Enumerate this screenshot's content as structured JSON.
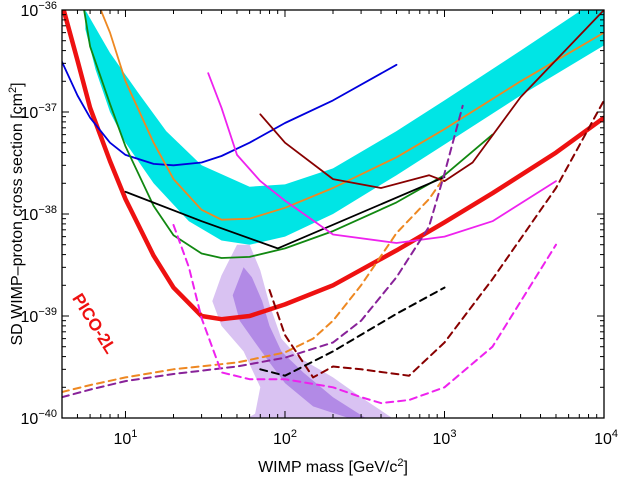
{
  "chart_data": {
    "type": "line",
    "title": "",
    "xlabel_main": "WIMP mass [GeV/c",
    "xlabel_sup": "2",
    "xlabel_end": "]",
    "ylabel_main": "SD WIMP–proton cross section [cm",
    "ylabel_sup": "2",
    "ylabel_end": "]",
    "x_scale": "log",
    "y_scale": "log",
    "xlim": [
      4,
      10000
    ],
    "ylim": [
      1e-40,
      1e-36
    ],
    "x_ticks": [
      {
        "value": 10,
        "base": "10",
        "exp": "1"
      },
      {
        "value": 100,
        "base": "10",
        "exp": "2"
      },
      {
        "value": 1000,
        "base": "10",
        "exp": "3"
      },
      {
        "value": 10000,
        "base": "10",
        "exp": "4"
      }
    ],
    "y_ticks": [
      {
        "value": 1e-40,
        "base": "10",
        "exp": "−40"
      },
      {
        "value": 1e-39,
        "base": "10",
        "exp": "−39"
      },
      {
        "value": 1e-38,
        "base": "10",
        "exp": "−38"
      },
      {
        "value": 1e-37,
        "base": "10",
        "exp": "−37"
      },
      {
        "value": 1e-36,
        "base": "10",
        "exp": "−36"
      }
    ],
    "grid": false,
    "annotations": [
      {
        "text": "PICO-2L",
        "color": "#ee1111",
        "anchor_x": 4.6,
        "anchor_y": 1.5e-39
      }
    ],
    "bands": [
      {
        "id": "cyan-band",
        "color": "#00e5e5",
        "upper": [
          [
            5.6,
            1e-36
          ],
          [
            8,
            3.8e-37
          ],
          [
            12,
            1.55e-37
          ],
          [
            18,
            6.5e-38
          ],
          [
            30,
            3e-38
          ],
          [
            60,
            1.85e-38
          ],
          [
            100,
            1.95e-38
          ],
          [
            200,
            2.8e-38
          ],
          [
            500,
            6.5e-38
          ],
          [
            1000,
            1.3e-37
          ],
          [
            3000,
            4e-37
          ],
          [
            10000,
            1.4e-36
          ]
        ],
        "lower": [
          [
            10000,
            4.5e-37
          ],
          [
            3000,
            1.45e-37
          ],
          [
            1000,
            4.8e-38
          ],
          [
            500,
            2.4e-38
          ],
          [
            200,
            1e-38
          ],
          [
            100,
            6e-39
          ],
          [
            60,
            5e-39
          ],
          [
            40,
            5.5e-39
          ],
          [
            25,
            8.5e-39
          ],
          [
            15,
            2e-38
          ],
          [
            10,
            5e-38
          ],
          [
            8,
            1e-37
          ],
          [
            6.5,
            2.6e-37
          ],
          [
            5.6,
            6.5e-37
          ]
        ]
      },
      {
        "id": "purple-region-outer",
        "color": "#d9c2f2",
        "points": [
          [
            50,
            5e-39
          ],
          [
            40,
            2.5e-39
          ],
          [
            35,
            1.4e-39
          ],
          [
            40,
            8e-40
          ],
          [
            55,
            4.5e-40
          ],
          [
            70,
            2e-40
          ],
          [
            65,
            1.1e-40
          ],
          [
            58,
            1e-40
          ],
          [
            470,
            1e-40
          ],
          [
            300,
            1.6e-40
          ],
          [
            200,
            2.5e-40
          ],
          [
            120,
            4e-40
          ],
          [
            95,
            6e-40
          ],
          [
            80,
            1.3e-39
          ],
          [
            70,
            2.8e-39
          ],
          [
            60,
            5e-39
          ]
        ]
      },
      {
        "id": "purple-region-inner",
        "color": "#b28ae6",
        "points": [
          [
            55,
            3e-39
          ],
          [
            47,
            1.6e-39
          ],
          [
            52,
            9e-40
          ],
          [
            65,
            5.5e-40
          ],
          [
            80,
            3.5e-40
          ],
          [
            100,
            2.2e-40
          ],
          [
            150,
            1.3e-40
          ],
          [
            250,
            1e-40
          ],
          [
            320,
            1e-40
          ],
          [
            200,
            1.6e-40
          ],
          [
            130,
            2.8e-40
          ],
          [
            95,
            4.5e-40
          ],
          [
            80,
            8e-40
          ],
          [
            72,
            1.4e-39
          ],
          [
            62,
            2.4e-39
          ]
        ]
      }
    ],
    "series": [
      {
        "id": "pico-2l",
        "color": "#ee1111",
        "width": 4.5,
        "dash": false,
        "x": [
          4.1,
          5,
          6,
          8,
          10,
          15,
          20,
          30,
          40,
          60,
          100,
          200,
          500,
          1000,
          2000,
          5000,
          10000
        ],
        "y": [
          1e-36,
          3.2e-37,
          1.1e-37,
          3.3e-38,
          1.4e-38,
          3.9e-39,
          1.9e-39,
          1e-39,
          9.3e-40,
          1e-39,
          1.3e-39,
          2e-39,
          4.4e-39,
          8.3e-39,
          1.6e-38,
          4e-38,
          8.8e-38
        ]
      },
      {
        "id": "blue",
        "color": "#0000dd",
        "width": 1.8,
        "dash": false,
        "x": [
          4,
          5,
          6,
          8,
          10,
          15,
          20,
          30,
          40,
          60,
          100,
          200,
          500
        ],
        "y": [
          3.1e-37,
          1.45e-37,
          8.8e-38,
          5e-38,
          3.8e-38,
          3.1e-38,
          3e-38,
          3.2e-38,
          3.7e-38,
          5e-38,
          7.8e-38,
          1.3e-37,
          2.9e-37
        ]
      },
      {
        "id": "green",
        "color": "#118811",
        "width": 1.8,
        "dash": false,
        "x": [
          5.5,
          6,
          8,
          10,
          15,
          20,
          30,
          40,
          60,
          100,
          200,
          500,
          1000,
          2000
        ],
        "y": [
          1e-36,
          4.4e-37,
          1.2e-37,
          4.6e-38,
          1.2e-38,
          6.2e-39,
          4.1e-39,
          3.7e-39,
          3.8e-39,
          4.6e-39,
          6.8e-39,
          1.3e-38,
          2.4e-38,
          6e-38
        ]
      },
      {
        "id": "orange",
        "color": "#ee8822",
        "width": 1.8,
        "dash": false,
        "x": [
          7,
          8,
          10,
          15,
          20,
          30,
          40,
          60,
          100,
          200,
          500,
          1000,
          3000,
          10000
        ],
        "y": [
          1e-36,
          6e-37,
          2e-37,
          5e-38,
          2.2e-38,
          1.1e-38,
          8.8e-39,
          9e-39,
          1.15e-38,
          1.8e-38,
          3.6e-38,
          6.8e-38,
          2e-37,
          6e-37
        ]
      },
      {
        "id": "black",
        "color": "#000000",
        "width": 1.8,
        "dash": false,
        "x": [
          10,
          30,
          90,
          1000
        ],
        "y": [
          1.65e-38,
          8.5e-39,
          4.6e-39,
          2.3e-38
        ]
      },
      {
        "id": "magenta",
        "color": "#ee22ee",
        "width": 1.8,
        "dash": false,
        "x": [
          33,
          40,
          50,
          70,
          100,
          200,
          500,
          1000,
          2000,
          5000
        ],
        "y": [
          2.4e-37,
          1.1e-37,
          3.8e-38,
          2.1e-38,
          1.35e-38,
          6.3e-39,
          5.2e-39,
          6e-39,
          8.5e-39,
          2.1e-38
        ]
      },
      {
        "id": "dark-red",
        "color": "#880000",
        "width": 1.8,
        "dash": false,
        "x": [
          70,
          100,
          200,
          400,
          800,
          1000,
          1500,
          3000,
          10000
        ],
        "y": [
          9.5e-38,
          5e-38,
          2.2e-38,
          1.8e-38,
          2.4e-38,
          2.1e-38,
          3.2e-38,
          1.4e-37,
          1e-36
        ]
      },
      {
        "id": "dashed-orange",
        "color": "#ee8822",
        "width": 2,
        "dash": true,
        "x": [
          4,
          6,
          10,
          20,
          50,
          100,
          150,
          200,
          300,
          500,
          800,
          1000
        ],
        "y": [
          1.8e-40,
          2.1e-40,
          2.5e-40,
          3e-40,
          3.5e-40,
          4.4e-40,
          6e-40,
          9e-40,
          2e-39,
          6.5e-39,
          1.4e-38,
          2.3e-38
        ]
      },
      {
        "id": "dashed-purple",
        "color": "#882299",
        "width": 2,
        "dash": true,
        "x": [
          4,
          6,
          10,
          20,
          50,
          100,
          200,
          300,
          500,
          800,
          1000,
          1300
        ],
        "y": [
          1.6e-40,
          1.9e-40,
          2.3e-40,
          2.7e-40,
          3.2e-40,
          3.9e-40,
          5.5e-40,
          9e-40,
          2.4e-39,
          7.5e-39,
          2.5e-38,
          1.15e-37
        ]
      },
      {
        "id": "dashed-magenta",
        "color": "#ee22ee",
        "width": 2,
        "dash": true,
        "x": [
          20,
          25,
          30,
          40,
          60,
          100,
          200,
          300,
          400,
          600,
          1000,
          2000,
          5000
        ],
        "y": [
          7.8e-39,
          3e-39,
          9.5e-40,
          2.8e-40,
          2.4e-40,
          2.4e-40,
          2e-40,
          1.6e-40,
          1.4e-40,
          1.5e-40,
          2e-40,
          5e-40,
          5e-39
        ]
      },
      {
        "id": "dashed-dark-red",
        "color": "#880000",
        "width": 2,
        "dash": true,
        "x": [
          80,
          100,
          150,
          200,
          300,
          600,
          1000,
          2000,
          5000,
          10000
        ],
        "y": [
          1.8e-39,
          6.5e-40,
          2.5e-40,
          3.2e-40,
          3e-40,
          2.6e-40,
          5.5e-40,
          2.3e-39,
          1.8e-38,
          1.3e-37
        ]
      },
      {
        "id": "dashed-black",
        "color": "#000000",
        "width": 2,
        "dash": true,
        "x": [
          70,
          100,
          200,
          500,
          1000
        ],
        "y": [
          3e-40,
          2.6e-40,
          4.5e-40,
          1.05e-39,
          1.9e-39
        ]
      }
    ]
  }
}
